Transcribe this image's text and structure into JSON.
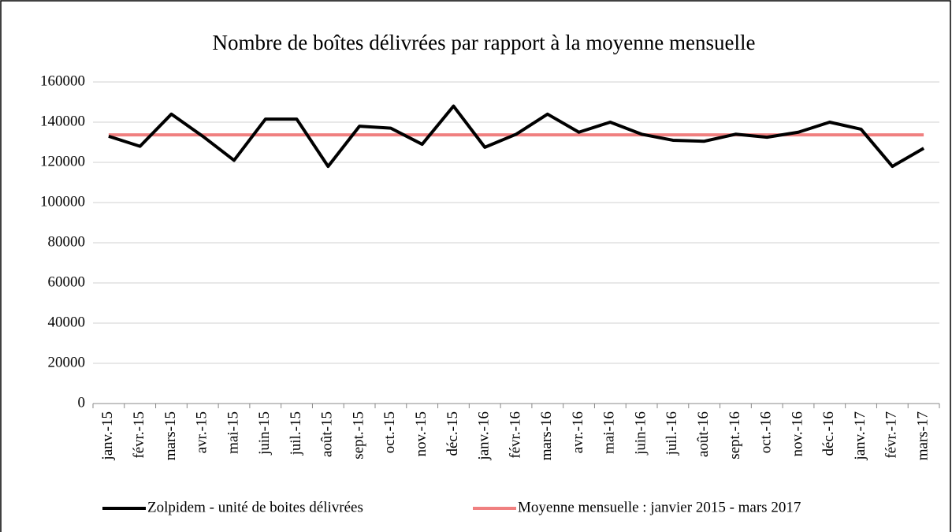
{
  "chart_data": {
    "type": "line",
    "title": "Nombre de boîtes délivrées par rapport à la moyenne mensuelle",
    "categories": [
      "janv.-15",
      "févr.-15",
      "mars-15",
      "avr.-15",
      "mai-15",
      "juin-15",
      "juil.-15",
      "août-15",
      "sept.-15",
      "oct.-15",
      "nov.-15",
      "déc.-15",
      "janv.-16",
      "févr.-16",
      "mars-16",
      "avr.-16",
      "mai-16",
      "juin-16",
      "juil.-16",
      "août-16",
      "sept.-16",
      "oct.-16",
      "nov.-16",
      "déc.-16",
      "janv.-17",
      "févr.-17",
      "mars-17"
    ],
    "series": [
      {
        "name": "Zolpidem - unité de boites délivrées",
        "color": "#000000",
        "values": [
          133000,
          128000,
          144000,
          133000,
          121000,
          141500,
          141500,
          118000,
          138000,
          137000,
          129000,
          148000,
          127500,
          134000,
          144000,
          135000,
          140000,
          134000,
          131000,
          130500,
          134000,
          132500,
          135000,
          140000,
          136500,
          118000,
          127000
        ]
      },
      {
        "name": "Moyenne mensuelle : janvier 2015 - mars 2017",
        "color": "#f08080",
        "values": [
          133700,
          133700,
          133700,
          133700,
          133700,
          133700,
          133700,
          133700,
          133700,
          133700,
          133700,
          133700,
          133700,
          133700,
          133700,
          133700,
          133700,
          133700,
          133700,
          133700,
          133700,
          133700,
          133700,
          133700,
          133700,
          133700,
          133700
        ]
      }
    ],
    "ylim": [
      0,
      160000
    ],
    "yticks": [
      0,
      20000,
      40000,
      60000,
      80000,
      100000,
      120000,
      140000,
      160000
    ],
    "grid": true,
    "legend": "bottom"
  }
}
